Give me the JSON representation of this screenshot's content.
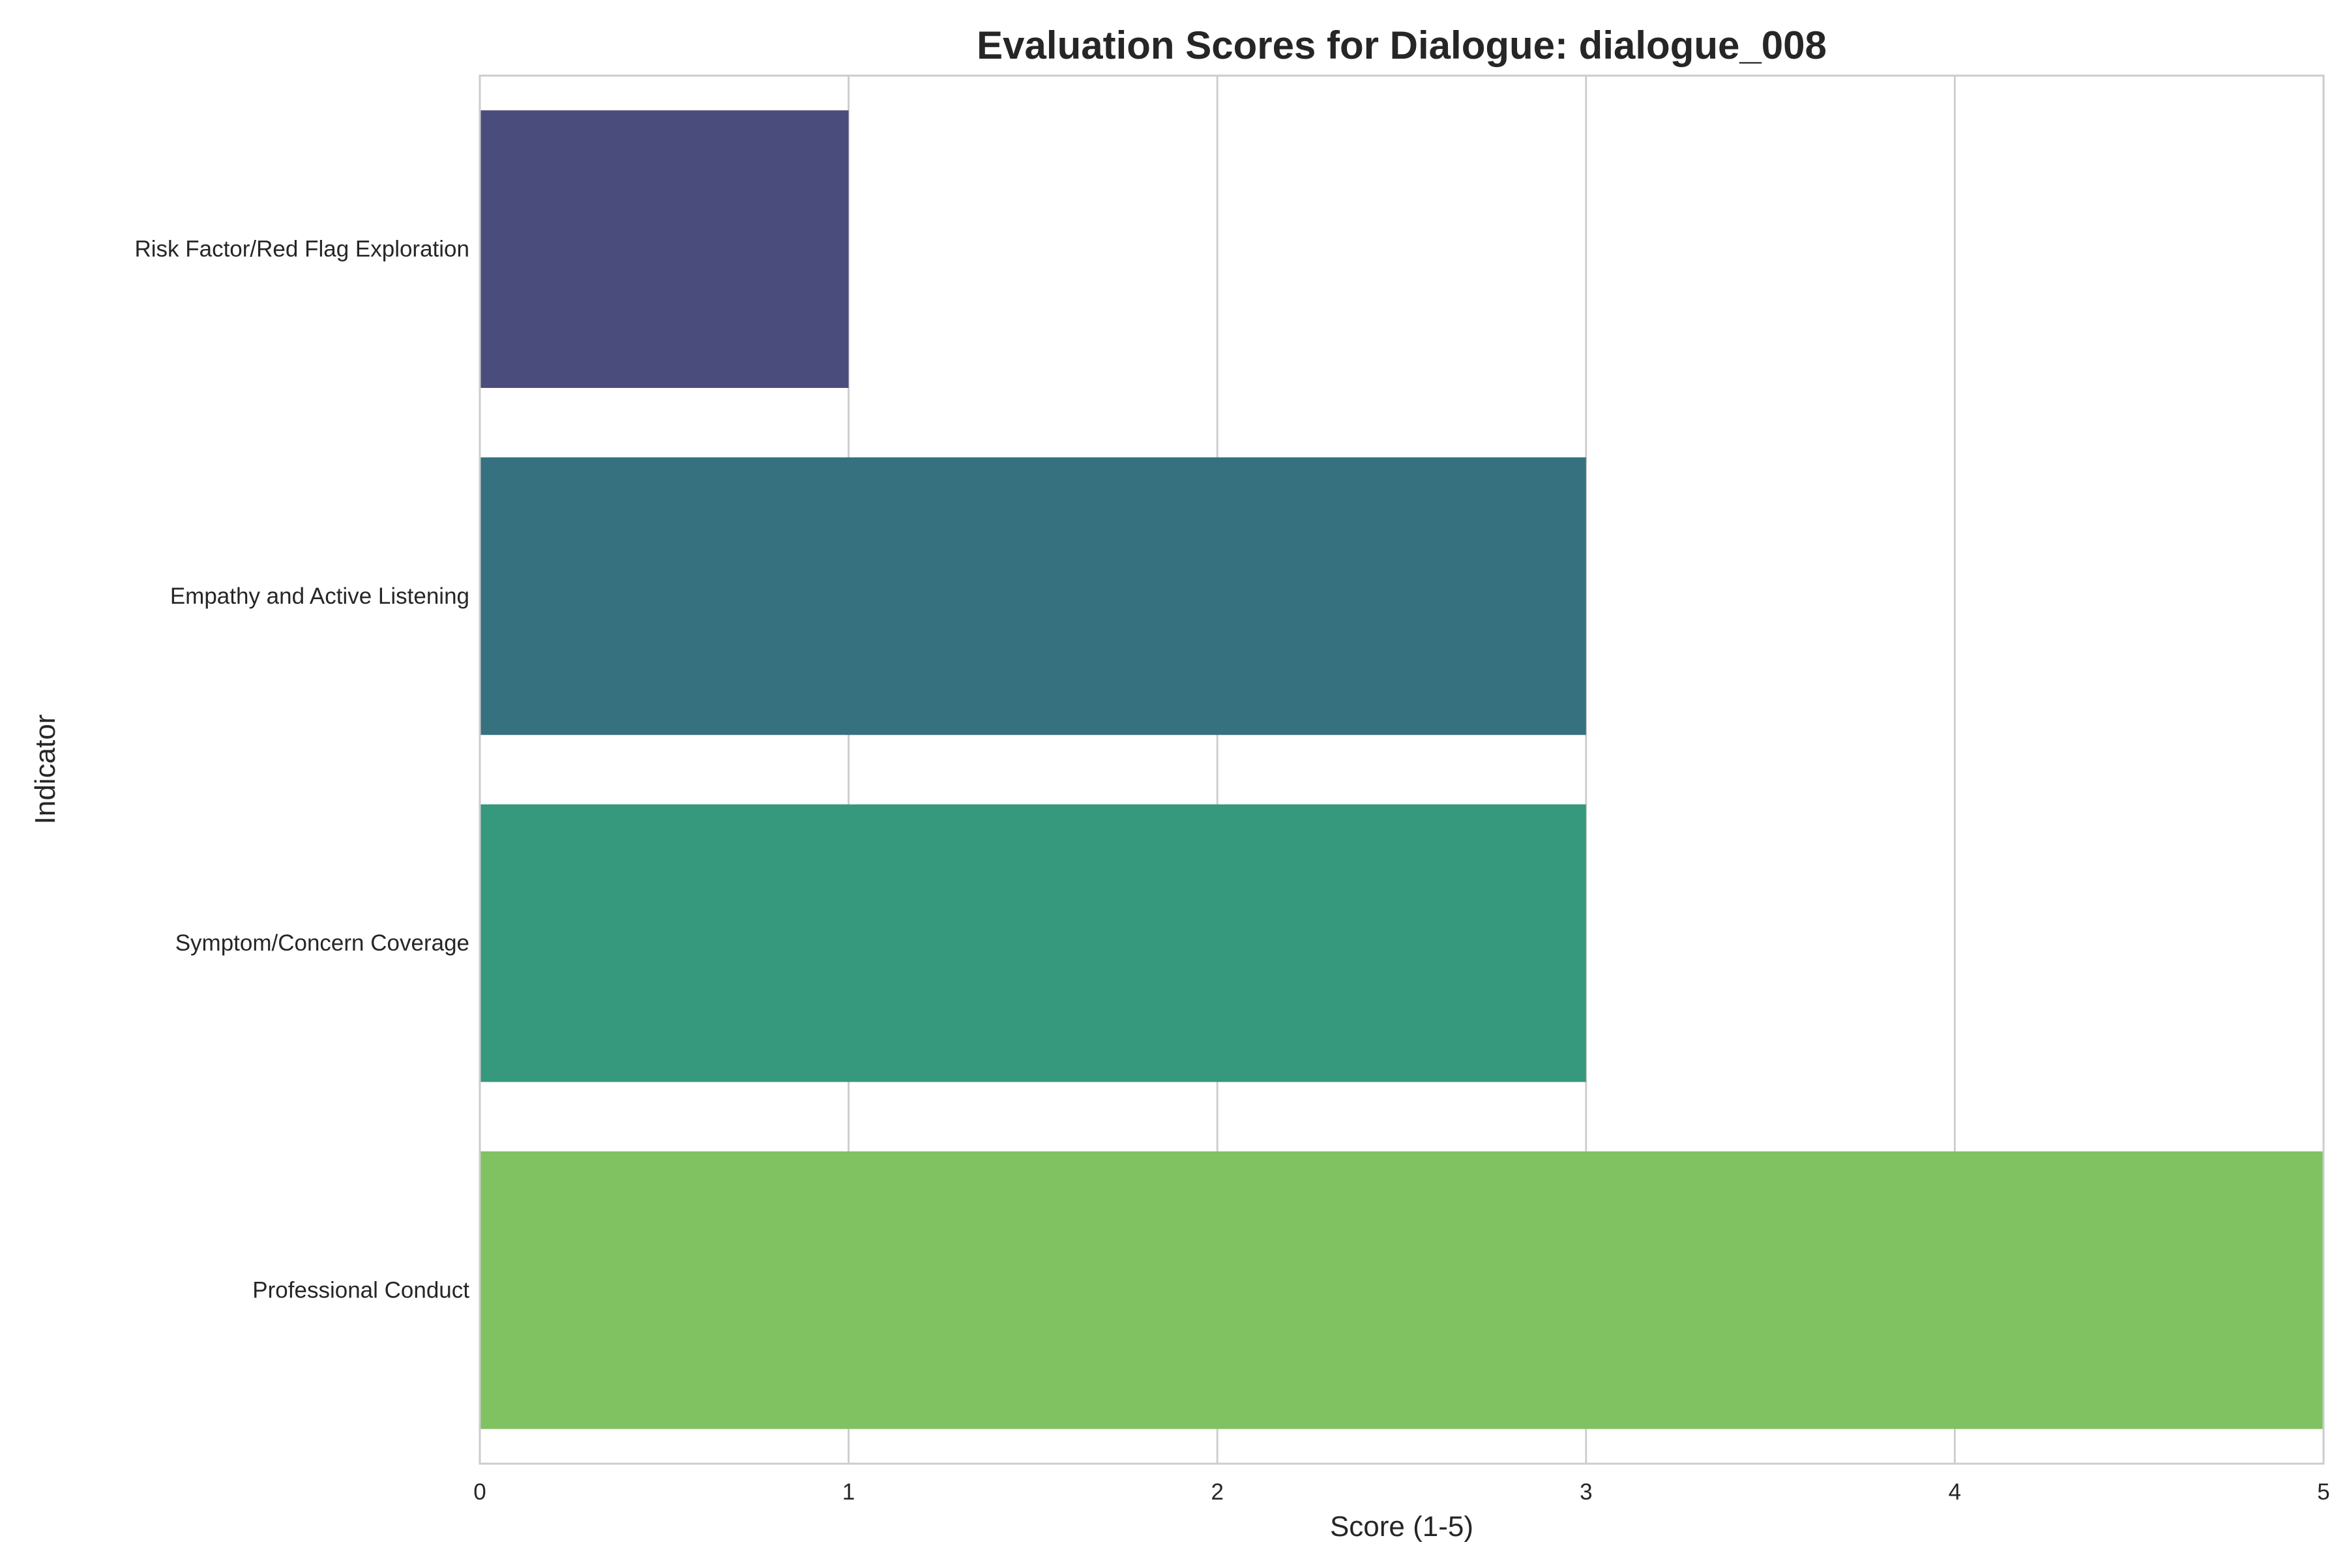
{
  "chart_data": {
    "type": "bar",
    "orientation": "horizontal",
    "title": "Evaluation Scores for Dialogue: dialogue_008",
    "xlabel": "Score (1-5)",
    "ylabel": "Indicator",
    "categories": [
      "Risk Factor/Red Flag Exploration",
      "Empathy and Active Listening",
      "Symptom/Concern Coverage",
      "Professional Conduct"
    ],
    "values": [
      1,
      3,
      3,
      5
    ],
    "colors": [
      "#4a4d7c",
      "#367180",
      "#36987c",
      "#80c262"
    ],
    "xlim": [
      0,
      5
    ],
    "xticks": [
      0,
      1,
      2,
      3,
      4,
      5
    ],
    "grid": "x-axis",
    "legend": "none"
  }
}
